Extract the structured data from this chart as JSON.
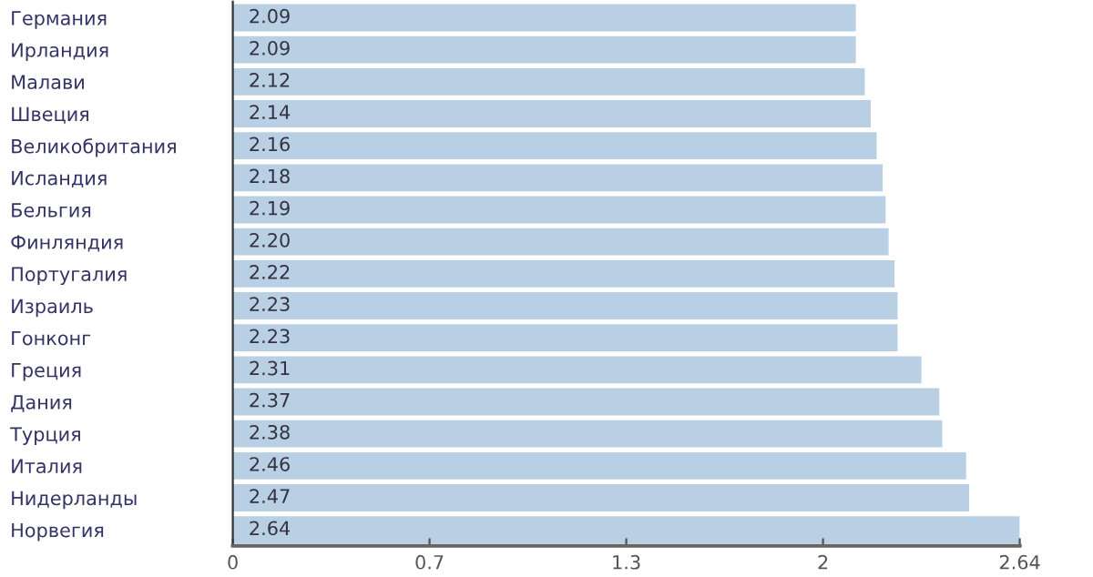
{
  "chart_data": {
    "type": "bar",
    "orientation": "horizontal",
    "categories": [
      "Германия ",
      "Ирландия ",
      "Малави ",
      "Швеция ",
      "Великобритания ",
      "Исландия ",
      "Бельгия ",
      "Финляндия ",
      "Португалия ",
      "Израиль ",
      "Гонконг ",
      "Греция ",
      "Дания ",
      "Турция ",
      "Италия ",
      "Нидерланды ",
      "Норвегия "
    ],
    "values": [
      2.09,
      2.09,
      2.12,
      2.14,
      2.16,
      2.18,
      2.19,
      2.2,
      2.22,
      2.23,
      2.23,
      2.31,
      2.37,
      2.38,
      2.46,
      2.47,
      2.64
    ],
    "value_labels": [
      "2.09",
      "2.09",
      "2.12",
      "2.14",
      "2.16",
      "2.18",
      "2.19",
      "2.20",
      "2.22",
      "2.23",
      "2.23",
      "2.31",
      "2.37",
      "2.38",
      "2.46",
      "2.47",
      "2.64"
    ],
    "color": "#b9cfe4",
    "xlim": [
      0,
      2.64
    ],
    "xticks": [
      0,
      {
        "value": 0.66,
        "label": "0.7"
      },
      {
        "value": 1.32,
        "label": "1.3"
      },
      {
        "value": 1.98,
        "label": "2"
      },
      2.64
    ],
    "grid": false,
    "legend": false
  }
}
